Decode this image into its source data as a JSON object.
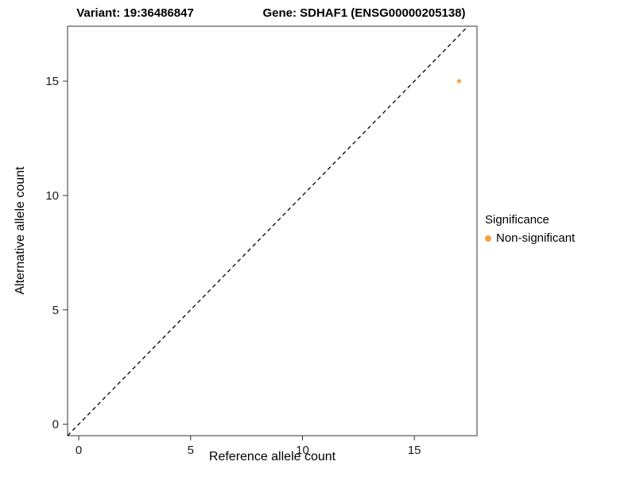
{
  "chart_data": {
    "type": "scatter",
    "title_left": "Variant: 19:36486847",
    "title_right": "Gene: SDHAF1 (ENSG00000205138)",
    "xlabel": "Reference allele count",
    "ylabel": "Alternative allele count",
    "xlim": [
      -0.5,
      17.8
    ],
    "ylim": [
      -0.5,
      17.4
    ],
    "xticks": [
      0,
      5,
      10,
      15
    ],
    "yticks": [
      0,
      5,
      10,
      15
    ],
    "grid": false,
    "panel_border_color": "#333333",
    "tick_color": "#333333",
    "tick_label_color": "#1a1a1a",
    "reference_line": {
      "equation": "y = x",
      "style": "dashed",
      "color": "#000000"
    },
    "series": [
      {
        "name": "Non-significant",
        "color": "#F9A242",
        "marker": "circle",
        "points": [
          {
            "x": 17,
            "y": 15
          }
        ]
      }
    ],
    "legend": {
      "position": "right",
      "title": "Significance",
      "entries": [
        {
          "label": "Non-significant",
          "color": "#F9A242",
          "marker": "circle"
        }
      ]
    }
  }
}
